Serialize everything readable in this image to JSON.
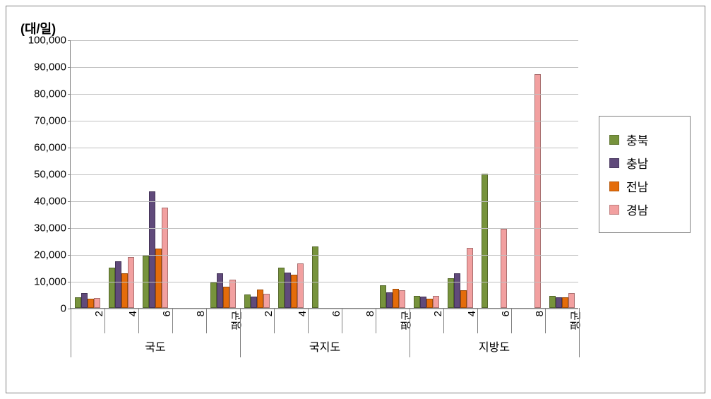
{
  "chart": {
    "type": "bar",
    "y_axis_title": "(대/일)",
    "ylim": [
      0,
      100000
    ],
    "ytick_step": 10000,
    "y_tick_labels": [
      "0",
      "10,000",
      "20,000",
      "30,000",
      "40,000",
      "50,000",
      "60,000",
      "70,000",
      "80,000",
      "90,000",
      "100,000"
    ],
    "series": [
      {
        "name": "충북",
        "color": "#77933c"
      },
      {
        "name": "충남",
        "color": "#604a7b"
      },
      {
        "name": "전남",
        "color": "#e46c0a"
      },
      {
        "name": "경남",
        "color": "#f2a0a0"
      }
    ],
    "groups": [
      {
        "label": "국도",
        "categories": [
          {
            "label": "2",
            "values": [
              4000,
              5500,
              3500,
              3800
            ]
          },
          {
            "label": "4",
            "values": [
              15000,
              17500,
              13000,
              19000
            ]
          },
          {
            "label": "6",
            "values": [
              19500,
              43500,
              22000,
              37500
            ]
          },
          {
            "label": "8",
            "values": [
              null,
              null,
              null,
              null
            ]
          },
          {
            "label": "평균",
            "values": [
              9500,
              13000,
              8000,
              10500
            ]
          }
        ]
      },
      {
        "label": "국지도",
        "categories": [
          {
            "label": "2",
            "values": [
              5000,
              4200,
              6800,
              5200
            ]
          },
          {
            "label": "4",
            "values": [
              15000,
              13200,
              12500,
              16500
            ]
          },
          {
            "label": "6",
            "values": [
              23000,
              null,
              null,
              null
            ]
          },
          {
            "label": "8",
            "values": [
              null,
              null,
              null,
              null
            ]
          },
          {
            "label": "평균",
            "values": [
              8500,
              5800,
              7000,
              6500
            ]
          }
        ]
      },
      {
        "label": "지방도",
        "categories": [
          {
            "label": "2",
            "values": [
              4500,
              4200,
              3500,
              4500
            ]
          },
          {
            "label": "4",
            "values": [
              11000,
              13000,
              6500,
              22500
            ]
          },
          {
            "label": "6",
            "values": [
              50000,
              null,
              null,
              29500
            ]
          },
          {
            "label": "8",
            "values": [
              null,
              null,
              null,
              87000
            ]
          },
          {
            "label": "평균",
            "values": [
              4500,
              4000,
              4000,
              5500
            ]
          }
        ]
      }
    ],
    "background_color": "#ffffff",
    "grid_color": "#c0c0c0",
    "axis_color": "#808080",
    "font_family": "Arial, sans-serif",
    "label_fontsize": 15,
    "legend_fontsize": 17,
    "title_fontsize": 18,
    "bar_group_gap_ratio": 0.25
  }
}
